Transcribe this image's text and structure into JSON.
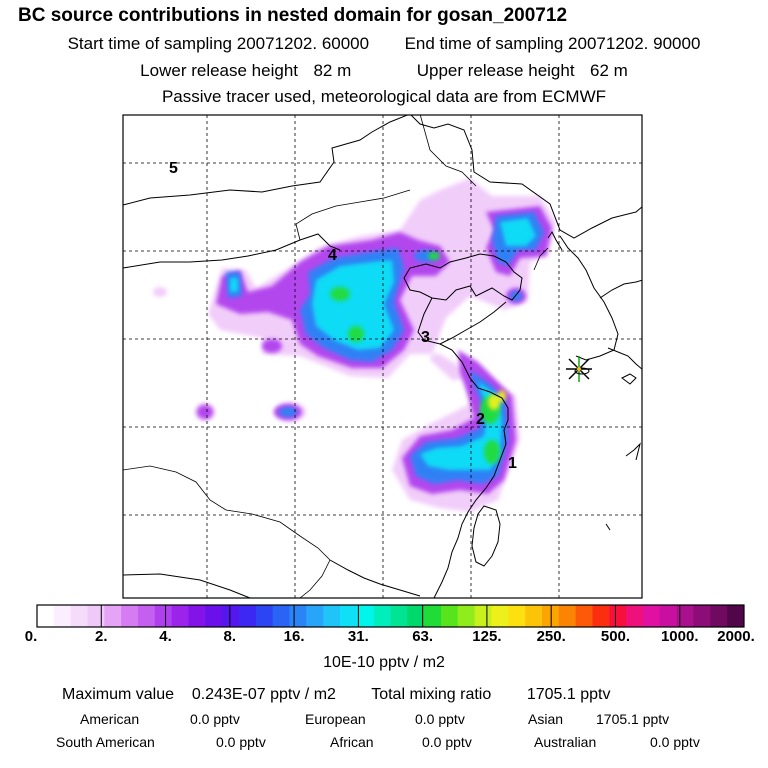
{
  "header": {
    "title": "BC  source contributions in nested domain for gosan_200712",
    "start_label": "Start time of sampling",
    "start_value": "20071202. 60000",
    "end_label": "End time of sampling",
    "end_value": "20071202. 90000",
    "lower_label": "Lower release height",
    "lower_value": "82 m",
    "upper_label": "Upper release height",
    "upper_value": "62 m",
    "tracer_note": "Passive tracer used, meteorological data are from ECMWF"
  },
  "map": {
    "region_labels": [
      "1",
      "2",
      "3",
      "4",
      "5"
    ],
    "receptor_marker": "star-burst-icon"
  },
  "colorbar": {
    "ticks": [
      "0.",
      "2.",
      "4.",
      "8.",
      "16.",
      "31.",
      "63.",
      "125.",
      "250.",
      "500.",
      "1000.",
      "2000."
    ],
    "colors": [
      "#ffffff",
      "#fbeefe",
      "#f5dcfb",
      "#f0c8f9",
      "#e6a4f6",
      "#d57cf2",
      "#c45ff0",
      "#b040ee",
      "#9a24ec",
      "#8214ea",
      "#6a10ea",
      "#5418ee",
      "#3c28f0",
      "#2c44f2",
      "#2a64f4",
      "#2a84f6",
      "#28a4f8",
      "#20c4f8",
      "#10e0f6",
      "#00f6ec",
      "#00eebc",
      "#00e494",
      "#00d86c",
      "#20dc38",
      "#58e41c",
      "#90ec1c",
      "#c8f01c",
      "#eef01c",
      "#fce010",
      "#fcc408",
      "#fca404",
      "#fc8404",
      "#fc5a08",
      "#fc2e10",
      "#f8103c",
      "#f0107c",
      "#e010a0",
      "#c810a0",
      "#a8108c",
      "#8c0c78",
      "#700a60",
      "#500648"
    ],
    "units": "10E-10 pptv / m2"
  },
  "summary": {
    "max_label": "Maximum value",
    "max_value": "0.243E-07 pptv / m2",
    "total_label": "Total mixing ratio",
    "total_value": "1705.1 pptv",
    "sources": [
      {
        "name": "American",
        "value": "0.0 pptv"
      },
      {
        "name": "European",
        "value": "0.0 pptv"
      },
      {
        "name": "Asian",
        "value": "1705.1 pptv"
      },
      {
        "name": "South American",
        "value": "0.0 pptv"
      },
      {
        "name": "African",
        "value": "0.0 pptv"
      },
      {
        "name": "Australian",
        "value": "0.0 pptv"
      }
    ]
  }
}
